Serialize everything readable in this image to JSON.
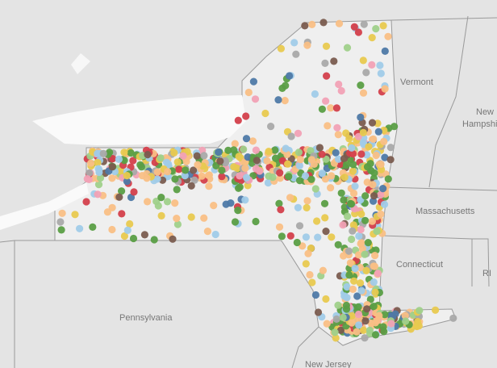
{
  "state_labels": [
    "Vermont",
    "New",
    "Hampshire",
    "Massachusetts",
    "Connecticut",
    "RI",
    "Pennsylvania",
    "New Jersey"
  ]
}
